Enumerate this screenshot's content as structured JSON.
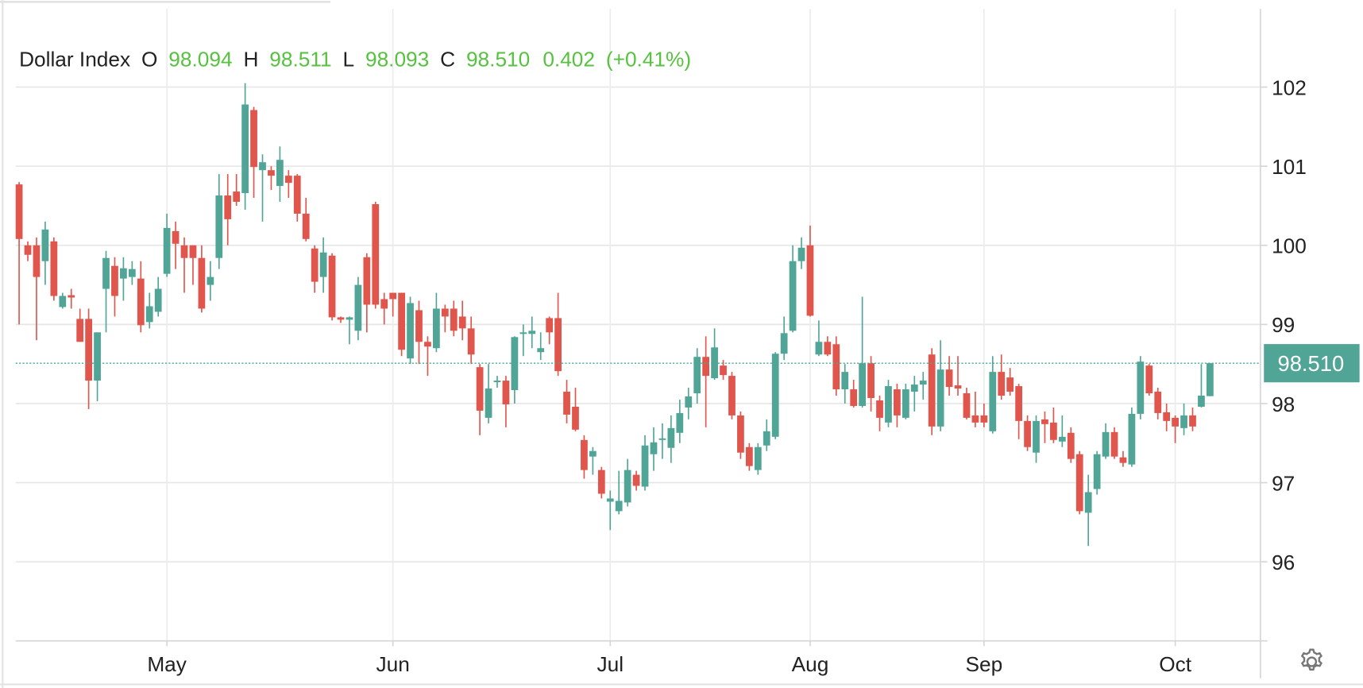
{
  "chart_data": {
    "type": "candlestick",
    "header": {
      "name": "Dollar Index",
      "open_label": "O",
      "open": 98.094,
      "high_label": "H",
      "high": 98.511,
      "low_label": "L",
      "low": 98.093,
      "close_label": "C",
      "close": {
        "value": 98.51,
        "label": "98.510"
      },
      "change": 0.402,
      "change_percent": {
        "value": 0.41,
        "label": "(+0.41%)"
      }
    },
    "last_price": {
      "value": 98.51,
      "label": "98.510"
    },
    "up_color": "#50a597",
    "down_color": "#e0554c",
    "header_color": "#56c23f",
    "grid": true,
    "ylim": [
      95,
      103
    ],
    "yticks": [
      96,
      97,
      98,
      99,
      100,
      101,
      102
    ],
    "categories": [
      null,
      null,
      null,
      null,
      null,
      null,
      null,
      null,
      null,
      null,
      null,
      null,
      null,
      null,
      null,
      null,
      null,
      "May",
      null,
      null,
      null,
      null,
      null,
      null,
      null,
      null,
      null,
      null,
      null,
      null,
      null,
      null,
      null,
      null,
      null,
      null,
      null,
      null,
      null,
      null,
      null,
      null,
      null,
      "Jun",
      null,
      null,
      null,
      null,
      null,
      null,
      null,
      null,
      null,
      null,
      null,
      null,
      null,
      null,
      null,
      null,
      null,
      null,
      null,
      null,
      null,
      null,
      null,
      null,
      "Jul",
      null,
      null,
      null,
      null,
      null,
      null,
      null,
      null,
      null,
      null,
      null,
      null,
      null,
      null,
      null,
      null,
      null,
      null,
      null,
      null,
      null,
      null,
      "Aug",
      null,
      null,
      null,
      null,
      null,
      null,
      null,
      null,
      null,
      null,
      null,
      null,
      null,
      null,
      null,
      null,
      null,
      null,
      null,
      "Sep",
      null,
      null,
      null,
      null,
      null,
      null,
      null,
      null,
      null,
      null,
      null,
      null,
      null,
      null,
      null,
      null,
      null,
      null,
      null,
      null,
      null,
      "Oct",
      null,
      null,
      null,
      null
    ],
    "open": [
      100.77,
      100.0,
      100.0,
      99.8,
      100.05,
      99.22,
      99.37,
      99.07,
      99.07,
      98.29,
      99.45,
      99.74,
      99.58,
      99.6,
      99.58,
      99.03,
      99.16,
      99.64,
      100.18,
      100.0,
      100.0,
      99.84,
      99.5,
      99.84,
      100.63,
      100.68,
      100.66,
      101.71,
      100.95,
      100.95,
      100.75,
      100.88,
      100.88,
      100.4,
      99.96,
      99.6,
      99.87,
      99.09,
      99.06,
      98.92,
      99.85,
      100.52,
      99.32,
      99.4,
      99.4,
      98.57,
      99.18,
      98.78,
      98.7,
      99.2,
      99.2,
      99.1,
      98.95,
      98.46,
      97.82,
      98.27,
      98.29,
      98.17,
      98.88,
      98.88,
      98.65,
      99.08,
      99.08,
      98.15,
      97.96,
      97.54,
      97.33,
      97.16,
      96.76,
      96.64,
      96.75,
      97.1,
      96.95,
      97.36,
      97.54,
      97.44,
      97.63,
      97.95,
      98.13,
      98.59,
      98.32,
      98.48,
      98.35,
      97.85,
      97.45,
      97.16,
      97.47,
      97.58,
      98.63,
      98.92,
      99.8,
      100.0,
      98.62,
      98.78,
      98.75,
      98.18,
      98.18,
      97.97,
      98.51,
      98.04,
      97.76,
      98.18,
      97.82,
      98.15,
      98.24,
      98.62,
      97.71,
      98.43,
      98.23,
      98.13,
      97.85,
      97.85,
      97.65,
      98.4,
      98.33,
      98.22,
      97.78,
      97.38,
      97.8,
      97.76,
      97.52,
      97.63,
      97.36,
      96.62,
      96.92,
      97.33,
      97.64,
      97.32,
      97.23,
      97.87,
      98.48,
      98.15,
      97.89,
      97.82,
      97.69,
      97.85,
      97.96,
      98.094
    ],
    "high": [
      100.8,
      100.05,
      100.1,
      100.3,
      100.1,
      99.4,
      99.45,
      99.2,
      99.2,
      98.9,
      99.93,
      99.85,
      99.85,
      99.8,
      99.8,
      99.4,
      99.6,
      100.4,
      100.3,
      100.1,
      100.0,
      100.0,
      99.8,
      100.9,
      100.9,
      100.9,
      102.05,
      101.75,
      101.15,
      101.0,
      101.25,
      100.95,
      100.9,
      100.6,
      100.0,
      100.1,
      99.9,
      99.1,
      99.1,
      99.6,
      99.9,
      100.55,
      99.4,
      99.4,
      99.4,
      99.35,
      99.3,
      98.85,
      99.4,
      99.25,
      99.3,
      99.3,
      99.1,
      98.5,
      98.5,
      98.35,
      98.35,
      98.85,
      99.0,
      99.1,
      98.9,
      99.1,
      99.4,
      98.3,
      98.2,
      97.6,
      97.45,
      97.2,
      96.9,
      97.15,
      97.3,
      97.15,
      97.6,
      97.7,
      97.75,
      97.85,
      98.05,
      98.2,
      98.7,
      98.85,
      98.95,
      98.55,
      98.4,
      97.9,
      97.5,
      97.5,
      97.8,
      98.65,
      99.1,
      100.0,
      100.1,
      100.25,
      99.05,
      98.85,
      98.85,
      98.5,
      98.3,
      99.35,
      98.6,
      98.1,
      98.3,
      98.25,
      98.25,
      98.35,
      98.4,
      98.7,
      98.8,
      98.6,
      98.6,
      98.2,
      98.15,
      98.0,
      98.6,
      98.62,
      98.45,
      98.25,
      97.85,
      97.85,
      97.9,
      97.95,
      97.85,
      97.7,
      97.4,
      97.1,
      97.4,
      97.75,
      97.7,
      97.4,
      97.95,
      98.6,
      98.5,
      98.2,
      98.0,
      97.85,
      98.0,
      97.95,
      98.5,
      98.511
    ],
    "low": [
      99.0,
      99.8,
      98.8,
      99.5,
      99.3,
      99.2,
      99.2,
      98.78,
      97.93,
      98.03,
      98.9,
      99.1,
      99.3,
      99.5,
      98.9,
      98.95,
      99.1,
      99.6,
      99.7,
      99.4,
      99.5,
      99.15,
      99.3,
      99.7,
      100.0,
      100.5,
      100.45,
      100.6,
      100.3,
      100.7,
      100.55,
      100.6,
      100.3,
      100.05,
      99.4,
      99.4,
      99.05,
      99.02,
      98.75,
      98.8,
      98.9,
      99.2,
      99.0,
      99.1,
      98.6,
      98.5,
      98.5,
      98.35,
      98.65,
      98.9,
      98.85,
      98.8,
      98.5,
      97.6,
      97.75,
      98.2,
      97.7,
      98.0,
      98.6,
      98.7,
      98.55,
      98.75,
      98.35,
      97.75,
      97.65,
      97.05,
      97.1,
      96.8,
      96.4,
      96.6,
      96.7,
      96.9,
      96.9,
      97.15,
      97.3,
      97.25,
      97.5,
      97.8,
      98.0,
      97.7,
      98.3,
      98.3,
      97.8,
      97.3,
      97.15,
      97.1,
      97.4,
      97.55,
      98.55,
      98.9,
      99.7,
      99.1,
      98.6,
      98.6,
      98.1,
      98.0,
      97.95,
      97.95,
      97.9,
      97.65,
      97.7,
      97.7,
      97.8,
      97.9,
      98.05,
      97.6,
      97.65,
      98.1,
      98.1,
      97.8,
      97.7,
      97.7,
      97.62,
      98.05,
      98.1,
      97.55,
      97.4,
      97.25,
      97.5,
      97.5,
      97.45,
      97.25,
      96.6,
      96.2,
      96.85,
      97.3,
      97.3,
      97.2,
      97.2,
      97.8,
      98.1,
      97.8,
      97.65,
      97.5,
      97.6,
      97.65,
      97.95,
      98.093
    ],
    "close": [
      100.08,
      99.88,
      99.6,
      100.2,
      99.36,
      99.36,
      99.34,
      98.78,
      98.29,
      98.9,
      99.84,
      99.36,
      99.71,
      99.7,
      98.99,
      99.23,
      99.45,
      100.22,
      100.02,
      99.84,
      99.84,
      99.2,
      99.6,
      100.63,
      100.33,
      100.55,
      101.78,
      100.99,
      101.05,
      100.88,
      101.08,
      100.79,
      100.4,
      100.08,
      99.54,
      99.91,
      99.09,
      99.06,
      99.09,
      99.5,
      99.25,
      99.25,
      99.2,
      99.32,
      98.68,
      99.27,
      98.78,
      98.72,
      99.2,
      99.1,
      98.92,
      98.95,
      98.62,
      97.91,
      98.19,
      98.29,
      97.99,
      98.84,
      98.9,
      98.92,
      98.7,
      98.9,
      98.41,
      97.86,
      97.67,
      97.16,
      97.4,
      96.86,
      96.8,
      96.77,
      97.16,
      96.96,
      97.47,
      97.51,
      97.56,
      97.69,
      97.88,
      98.09,
      98.59,
      98.35,
      98.71,
      98.36,
      97.85,
      97.38,
      97.21,
      97.45,
      97.65,
      98.63,
      98.89,
      99.8,
      99.97,
      99.11,
      98.78,
      98.62,
      98.18,
      98.4,
      97.97,
      98.51,
      98.07,
      97.82,
      98.22,
      97.85,
      98.18,
      98.24,
      98.29,
      97.71,
      98.43,
      98.21,
      98.19,
      97.82,
      97.76,
      97.76,
      98.4,
      98.1,
      98.15,
      97.78,
      97.45,
      97.78,
      97.74,
      97.54,
      97.58,
      97.3,
      96.64,
      96.88,
      97.36,
      97.64,
      97.33,
      97.25,
      97.87,
      98.53,
      98.13,
      97.88,
      97.78,
      97.71,
      97.85,
      97.71,
      98.1,
      98.51
    ]
  }
}
